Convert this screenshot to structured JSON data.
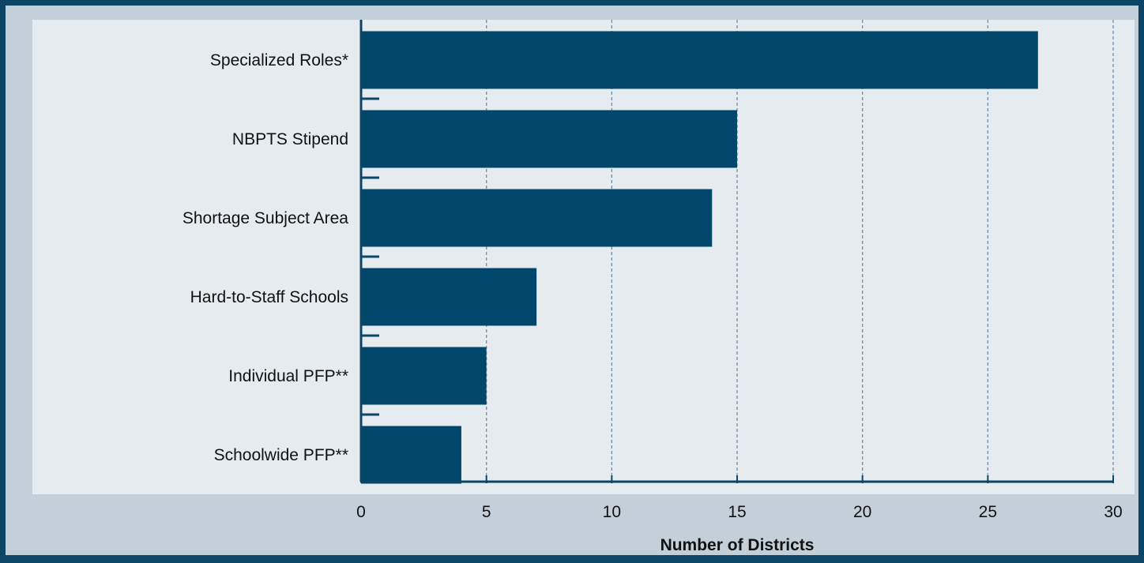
{
  "chart_data": {
    "type": "bar",
    "orientation": "horizontal",
    "categories": [
      "Specialized Roles*",
      "NBPTS Stipend",
      "Shortage Subject Area",
      "Hard-to-Staff Schools",
      "Individual PFP**",
      "Schoolwide PFP**"
    ],
    "values": [
      27,
      15,
      14,
      7,
      5,
      4
    ],
    "xlabel": "Number of Districts",
    "ylabel": "",
    "title": "",
    "xlim": [
      0,
      30
    ],
    "xticks": [
      "0",
      "5",
      "10",
      "15",
      "20",
      "25",
      "30"
    ],
    "grid": "vertical dashed",
    "colors": {
      "bar": "#00476b",
      "plot_background": "#e6ebf0",
      "frame_background": "#c3cfd9",
      "border": "#0c4566",
      "axis": "#0c4566",
      "grid": "#6e8eaa"
    }
  }
}
